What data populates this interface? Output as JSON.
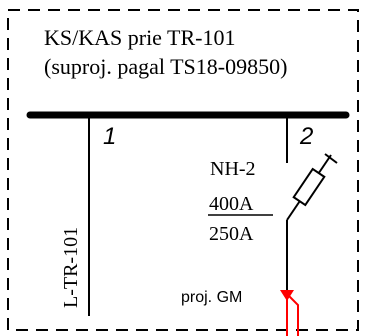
{
  "title": {
    "line1": "KS/KAS prie TR-101",
    "line2": "(suproj. pagal TS18-09850)"
  },
  "feeders": [
    {
      "number": "1",
      "cable_label": "L-TR-101"
    },
    {
      "number": "2",
      "fuse_type": "NH-2",
      "fuse_base_rating": "400A",
      "fuse_rating": "250A",
      "meter_label": "proj. GM"
    }
  ],
  "colors": {
    "line": "#000000",
    "frame": "#000000",
    "projected": "#ff0000",
    "background": "#ffffff"
  },
  "icons": {
    "fuse": "fuse-switch-icon",
    "meter_marker": "triangle-down-icon"
  }
}
